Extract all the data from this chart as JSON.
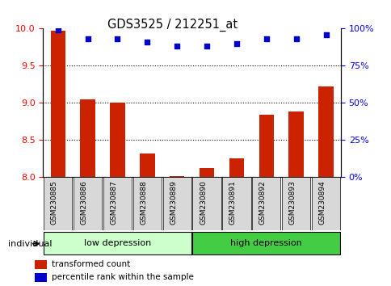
{
  "title": "GDS3525 / 212251_at",
  "samples": [
    "GSM230885",
    "GSM230886",
    "GSM230887",
    "GSM230888",
    "GSM230889",
    "GSM230890",
    "GSM230891",
    "GSM230892",
    "GSM230893",
    "GSM230894"
  ],
  "transformed_count": [
    9.97,
    9.05,
    9.0,
    8.32,
    8.02,
    8.12,
    8.25,
    8.84,
    8.88,
    9.22
  ],
  "percentile_rank": [
    99,
    93,
    93,
    91,
    88,
    88,
    90,
    93,
    93,
    96
  ],
  "ylim": [
    8.0,
    10.0
  ],
  "yticks": [
    8.0,
    8.5,
    9.0,
    9.5,
    10.0
  ],
  "y2lim": [
    0,
    100
  ],
  "y2ticks": [
    0,
    25,
    50,
    75,
    100
  ],
  "bar_color": "#cc2200",
  "dot_color": "#0000cc",
  "bar_bottom": 8.0,
  "groups": [
    {
      "label": "low depression",
      "start": 0,
      "end": 5,
      "color": "#ccffcc"
    },
    {
      "label": "high depression",
      "start": 5,
      "end": 10,
      "color": "#44cc44"
    }
  ],
  "legend_items": [
    {
      "label": "transformed count",
      "color": "#cc2200"
    },
    {
      "label": "percentile rank within the sample",
      "color": "#0000cc"
    }
  ],
  "individual_label": "individual"
}
